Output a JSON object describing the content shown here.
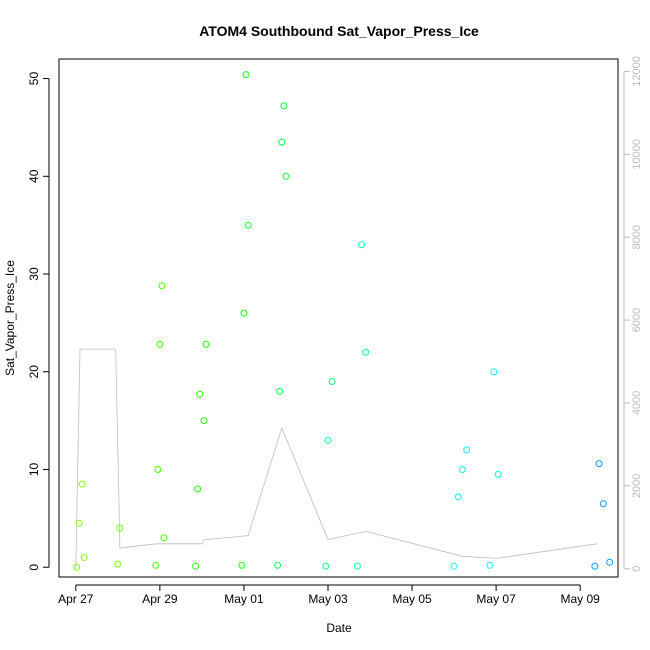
{
  "chart_data": {
    "type": "scatter",
    "title": "ATOM4 Southbound Sat_Vapor_Press_Ice",
    "xlabel": "Date",
    "ylabel": "Sat_Vapor_Press_Ice",
    "x_ticks": [
      "Apr 27",
      "Apr 29",
      "May 01",
      "May 03",
      "May 05",
      "May 07",
      "May 09"
    ],
    "x_tick_days": [
      0,
      2,
      4,
      6,
      8,
      10,
      12
    ],
    "xlim_days": [
      -0.4,
      12.9
    ],
    "ylim": [
      -1,
      52
    ],
    "y_ticks": [
      0,
      10,
      20,
      30,
      40,
      50
    ],
    "y2_ticks": [
      0,
      2000,
      4000,
      6000,
      8000,
      10000,
      12000
    ],
    "y2lim": [
      -200,
      12300
    ],
    "y2_color": "#bbbbbb",
    "altitude_line_color": "#bdbdbd",
    "grid": false,
    "series": [
      {
        "color": "#80ff00",
        "x": [
          0.02,
          0.08,
          0.15,
          0.2
        ],
        "y": [
          0,
          4.5,
          8.5,
          1
        ]
      },
      {
        "color": "#70ff00",
        "x": [
          1.0,
          1.05
        ],
        "y": [
          0.3,
          4.0
        ]
      },
      {
        "color": "#40ff00",
        "x": [
          1.9,
          1.95,
          2.0,
          2.05,
          2.1
        ],
        "y": [
          0.2,
          10,
          22.8,
          28.8,
          3
        ]
      },
      {
        "color": "#20ff00",
        "x": [
          2.85,
          2.9,
          2.95,
          3.05,
          3.1
        ],
        "y": [
          0.1,
          8,
          17.7,
          15,
          22.8
        ]
      },
      {
        "color": "#10ff10",
        "x": [
          3.95,
          4.0,
          4.05,
          4.1
        ],
        "y": [
          0.2,
          26,
          50.4,
          35
        ]
      },
      {
        "color": "#00ff40",
        "x": [
          4.8,
          4.85,
          4.9,
          4.95,
          5.0
        ],
        "y": [
          0.2,
          18,
          43.5,
          47.2,
          40
        ]
      },
      {
        "color": "#00ff80",
        "x": [
          5.95,
          6.0,
          6.1
        ],
        "y": [
          0.1,
          13,
          19
        ]
      },
      {
        "color": "#00ffa0",
        "x": [
          6.7,
          6.8,
          6.9
        ],
        "y": [
          0.1,
          33,
          22
        ]
      },
      {
        "color": "#00ffff",
        "x": [
          9.0,
          9.1,
          9.2,
          9.3
        ],
        "y": [
          0.1,
          7.2,
          10,
          12
        ]
      },
      {
        "color": "#00f0ff",
        "x": [
          9.85,
          9.95,
          10.05
        ],
        "y": [
          0.2,
          20,
          9.5
        ]
      },
      {
        "color": "#0099ff",
        "x": [
          12.35,
          12.45,
          12.55,
          12.7
        ],
        "y": [
          0.1,
          10.6,
          6.5,
          0.5
        ]
      }
    ],
    "altitude_track": {
      "x": [
        0.0,
        0.1,
        0.95,
        1.05,
        1.9,
        3.0,
        3.05,
        4.1,
        4.9,
        6.0,
        6.9,
        9.2,
        10.0,
        12.4
      ],
      "y2": [
        0,
        5300,
        5300,
        500,
        600,
        600,
        700,
        800,
        3400,
        700,
        900,
        300,
        250,
        600
      ]
    }
  }
}
